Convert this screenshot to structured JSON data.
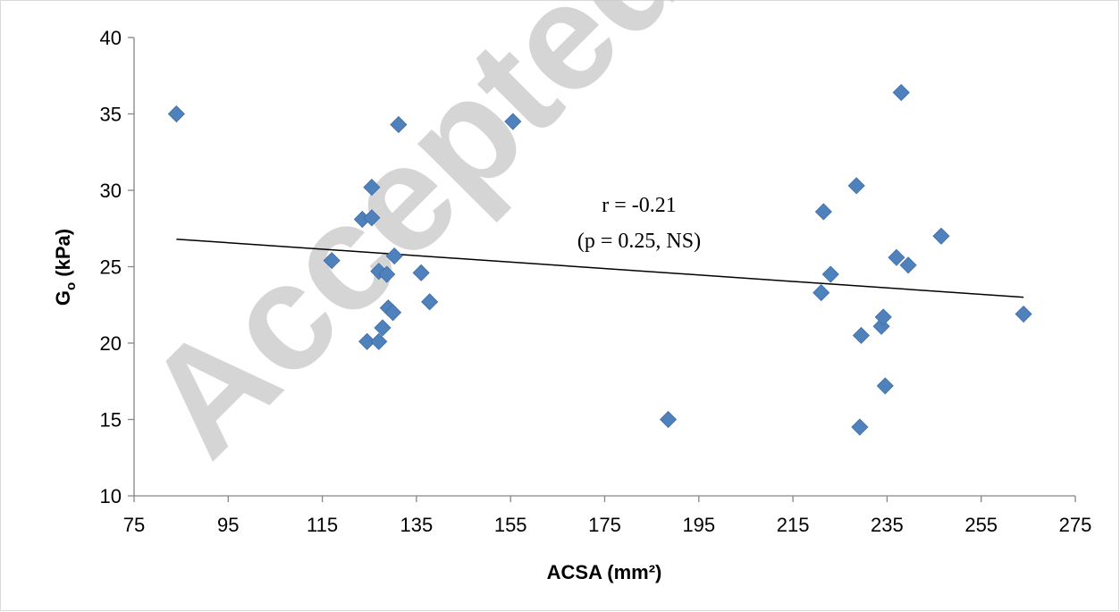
{
  "watermark": "Accepted M",
  "chart_data": {
    "type": "scatter",
    "xlabel": "ACSA (mm²)",
    "ylabel_main": "G",
    "ylabel_sub": "o",
    "ylabel_rest": " (kPa)",
    "xlim": [
      75,
      275
    ],
    "ylim": [
      10,
      40
    ],
    "x_ticks": [
      75,
      95,
      115,
      135,
      155,
      175,
      195,
      215,
      235,
      255,
      275
    ],
    "y_ticks": [
      10,
      15,
      20,
      25,
      30,
      35,
      40
    ],
    "grid": false,
    "marker_color": "#4f81bd",
    "trendline_color": "#000000",
    "annotation": [
      "r = -0.21",
      "(p = 0.25, NS)"
    ],
    "trendline": {
      "x": [
        84,
        264
      ],
      "y": [
        26.8,
        23.0
      ]
    },
    "points": [
      {
        "x": 84,
        "y": 35.0
      },
      {
        "x": 117,
        "y": 25.4
      },
      {
        "x": 123.5,
        "y": 28.1
      },
      {
        "x": 125.5,
        "y": 28.2
      },
      {
        "x": 125.5,
        "y": 30.2
      },
      {
        "x": 124.5,
        "y": 20.1
      },
      {
        "x": 127,
        "y": 20.1
      },
      {
        "x": 127,
        "y": 24.7
      },
      {
        "x": 127.8,
        "y": 21.0
      },
      {
        "x": 128.7,
        "y": 24.5
      },
      {
        "x": 129,
        "y": 22.3
      },
      {
        "x": 130,
        "y": 22.0
      },
      {
        "x": 130.3,
        "y": 25.7
      },
      {
        "x": 131.2,
        "y": 34.3
      },
      {
        "x": 136,
        "y": 24.6
      },
      {
        "x": 137.8,
        "y": 22.7
      },
      {
        "x": 155.5,
        "y": 34.5
      },
      {
        "x": 188.5,
        "y": 15.0
      },
      {
        "x": 221,
        "y": 23.3
      },
      {
        "x": 221.5,
        "y": 28.6
      },
      {
        "x": 223,
        "y": 24.5
      },
      {
        "x": 228.5,
        "y": 30.3
      },
      {
        "x": 229.5,
        "y": 20.5
      },
      {
        "x": 229.2,
        "y": 14.5
      },
      {
        "x": 233.8,
        "y": 21.1
      },
      {
        "x": 234.2,
        "y": 21.7
      },
      {
        "x": 234.6,
        "y": 17.2
      },
      {
        "x": 237,
        "y": 25.6
      },
      {
        "x": 238,
        "y": 36.4
      },
      {
        "x": 239.5,
        "y": 25.1
      },
      {
        "x": 246.5,
        "y": 27.0
      },
      {
        "x": 264,
        "y": 21.9
      }
    ]
  }
}
